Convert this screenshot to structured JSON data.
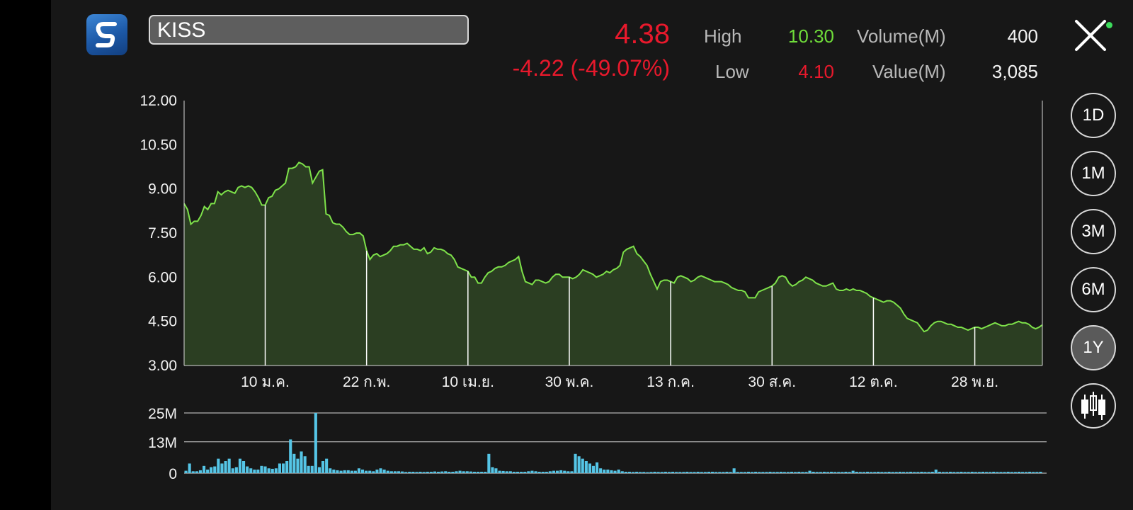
{
  "header": {
    "symbol": "KISS",
    "price": "4.38",
    "change": "-4.22 (-49.07%)",
    "high_label": "High",
    "high_value": "10.30",
    "low_label": "Low",
    "low_value": "4.10",
    "volume_label": "Volume(M)",
    "volume_value": "400",
    "value_label": "Value(M)",
    "value_value": "3,085"
  },
  "periods": [
    {
      "label": "1D",
      "active": false
    },
    {
      "label": "1M",
      "active": false
    },
    {
      "label": "3M",
      "active": false
    },
    {
      "label": "6M",
      "active": false
    },
    {
      "label": "1Y",
      "active": true
    }
  ],
  "colors": {
    "price_down": "#e8192c",
    "high": "#6fdc3a",
    "line": "#7ee24a",
    "area": "#2b3e22",
    "volume_bar": "#55c5e6"
  },
  "icons": [
    "logo-icon",
    "close-icon",
    "candlestick-icon"
  ],
  "chart_data": [
    {
      "type": "area",
      "y_ticks": [
        "12.00",
        "10.50",
        "9.00",
        "7.50",
        "6.00",
        "4.50",
        "3.00"
      ],
      "ylim": [
        3.0,
        12.0
      ],
      "x_tick_labels": [
        "10 ม.ค.",
        "22 ก.พ.",
        "10 เม.ย.",
        "30 พ.ค.",
        "13 ก.ค.",
        "30 ส.ค.",
        "12 ต.ค.",
        "28 พ.ย."
      ],
      "x_tick_index": [
        24,
        54,
        84,
        114,
        144,
        174,
        204,
        234
      ],
      "values": [
        8.5,
        8.3,
        7.8,
        7.9,
        7.9,
        8.1,
        8.4,
        8.3,
        8.5,
        8.5,
        8.9,
        8.8,
        8.9,
        8.95,
        8.9,
        8.85,
        9.05,
        9.1,
        9.05,
        9.1,
        9.05,
        8.9,
        8.7,
        8.45,
        8.45,
        8.7,
        8.75,
        8.95,
        9.0,
        9.1,
        9.2,
        9.7,
        9.7,
        9.75,
        9.9,
        9.85,
        9.75,
        9.75,
        9.2,
        9.4,
        9.6,
        9.65,
        8.15,
        8.1,
        7.85,
        7.8,
        7.8,
        7.7,
        7.55,
        7.45,
        7.45,
        7.5,
        7.5,
        7.4,
        6.9,
        6.6,
        6.75,
        6.8,
        6.7,
        6.75,
        6.8,
        6.9,
        7.05,
        7.05,
        7.1,
        7.1,
        7.15,
        7.05,
        6.95,
        6.95,
        6.9,
        7.0,
        6.8,
        6.85,
        7.0,
        6.95,
        6.95,
        6.9,
        6.8,
        6.75,
        6.6,
        6.35,
        6.3,
        6.25,
        6.2,
        6.0,
        6.0,
        5.8,
        5.8,
        6.0,
        6.15,
        6.2,
        6.3,
        6.35,
        6.35,
        6.4,
        6.5,
        6.55,
        6.6,
        6.7,
        6.2,
        5.85,
        5.8,
        5.75,
        5.9,
        5.9,
        5.85,
        5.8,
        5.85,
        6.0,
        6.1,
        6.1,
        6.0,
        6.0,
        6.0,
        5.95,
        6.0,
        6.1,
        6.25,
        6.2,
        6.15,
        6.1,
        6.0,
        6.05,
        6.1,
        6.2,
        6.15,
        6.25,
        6.3,
        6.4,
        6.85,
        6.95,
        7.0,
        7.05,
        6.8,
        6.7,
        6.55,
        6.4,
        6.1,
        5.85,
        5.6,
        5.85,
        5.9,
        5.9,
        5.85,
        5.8,
        6.0,
        6.05,
        6.0,
        5.95,
        5.85,
        5.9,
        6.0,
        6.05,
        6.0,
        5.95,
        5.9,
        5.85,
        5.85,
        5.85,
        5.8,
        5.75,
        5.65,
        5.6,
        5.55,
        5.55,
        5.5,
        5.3,
        5.3,
        5.3,
        5.5,
        5.55,
        5.6,
        5.65,
        5.7,
        5.8,
        6.0,
        6.05,
        6.0,
        5.8,
        5.7,
        5.75,
        5.85,
        5.9,
        6.0,
        5.95,
        5.9,
        5.8,
        5.75,
        5.7,
        5.7,
        5.75,
        5.8,
        5.6,
        5.55,
        5.55,
        5.6,
        5.55,
        5.6,
        5.55,
        5.55,
        5.5,
        5.45,
        5.35,
        5.3,
        5.25,
        5.2,
        5.15,
        5.2,
        5.2,
        5.15,
        5.05,
        4.95,
        4.75,
        4.6,
        4.55,
        4.5,
        4.45,
        4.3,
        4.15,
        4.2,
        4.35,
        4.45,
        4.5,
        4.5,
        4.45,
        4.4,
        4.4,
        4.35,
        4.3,
        4.3,
        4.25,
        4.2,
        4.25,
        4.3,
        4.3,
        4.25,
        4.3,
        4.35,
        4.4,
        4.45,
        4.4,
        4.35,
        4.35,
        4.4,
        4.4,
        4.45,
        4.5,
        4.45,
        4.45,
        4.4,
        4.3,
        4.25,
        4.3,
        4.38
      ]
    },
    {
      "type": "bar",
      "y_ticks": [
        "25M",
        "13M",
        "0"
      ],
      "ylim": [
        0,
        25
      ],
      "y_tick_values": [
        25,
        13,
        0
      ],
      "values": [
        1.0,
        4.0,
        0.8,
        0.8,
        1.2,
        3.0,
        1.5,
        2.5,
        2.8,
        6.0,
        4.0,
        5.0,
        6.0,
        2.0,
        2.5,
        6.0,
        5.0,
        2.8,
        2.0,
        1.5,
        1.5,
        3.0,
        2.8,
        2.0,
        1.8,
        2.0,
        4.0,
        4.0,
        5.0,
        14.0,
        8.0,
        6.0,
        9.0,
        7.0,
        3.0,
        3.0,
        25.0,
        2.5,
        5.0,
        6.0,
        2.0,
        1.5,
        1.2,
        1.0,
        1.2,
        1.2,
        1.0,
        1.0,
        2.0,
        1.5,
        1.0,
        1.0,
        0.8,
        1.5,
        2.0,
        1.5,
        1.0,
        0.8,
        0.8,
        0.8,
        0.7,
        0.5,
        0.6,
        0.6,
        0.5,
        0.6,
        0.5,
        0.6,
        0.6,
        0.7,
        0.6,
        0.7,
        0.8,
        0.6,
        0.6,
        0.8,
        1.0,
        0.8,
        0.8,
        0.7,
        0.6,
        0.6,
        0.6,
        0.6,
        8.0,
        2.5,
        2.0,
        1.0,
        0.9,
        0.8,
        0.8,
        0.6,
        0.6,
        0.6,
        0.6,
        0.8,
        1.0,
        0.8,
        0.6,
        0.6,
        0.6,
        0.8,
        1.0,
        1.0,
        1.2,
        1.0,
        0.8,
        0.8,
        8.0,
        7.0,
        6.0,
        5.0,
        4.0,
        3.0,
        4.5,
        2.0,
        1.5,
        1.5,
        1.2,
        1.0,
        1.5,
        0.8,
        0.6,
        0.6,
        0.5,
        0.6,
        0.5,
        0.5,
        0.4,
        0.5,
        0.6,
        0.5,
        0.5,
        0.6,
        0.5,
        0.6,
        0.5,
        0.5,
        0.5,
        0.6,
        0.5,
        0.5,
        0.6,
        0.5,
        0.5,
        0.6,
        0.6,
        0.5,
        0.5,
        0.5,
        0.6,
        0.5,
        2.0,
        0.5,
        0.5,
        0.5,
        0.6,
        0.5,
        0.6,
        0.5,
        0.5,
        0.5,
        0.6,
        0.5,
        0.5,
        0.6,
        0.5,
        0.5,
        0.6,
        0.5,
        0.6,
        0.5,
        0.5,
        1.0,
        0.6,
        0.5,
        0.5,
        0.6,
        0.5,
        0.6,
        0.5,
        0.5,
        0.5,
        0.6,
        0.5,
        1.0,
        0.6,
        0.5,
        0.5,
        0.6,
        0.5,
        0.5,
        0.6,
        0.5,
        0.5,
        0.6,
        0.5,
        0.5,
        0.6,
        0.5,
        0.5,
        0.6,
        0.5,
        0.5,
        0.6,
        0.5,
        0.5,
        0.6,
        1.5,
        0.6,
        0.5,
        0.5,
        0.6,
        0.5,
        0.5,
        0.6,
        0.5,
        0.5,
        0.6,
        0.5,
        0.5,
        0.6,
        0.5,
        0.5,
        0.6,
        0.5,
        0.5,
        0.5,
        0.6,
        0.5,
        0.5,
        0.6,
        0.5,
        0.5,
        0.6,
        0.5,
        0.5,
        0.6
      ]
    }
  ]
}
